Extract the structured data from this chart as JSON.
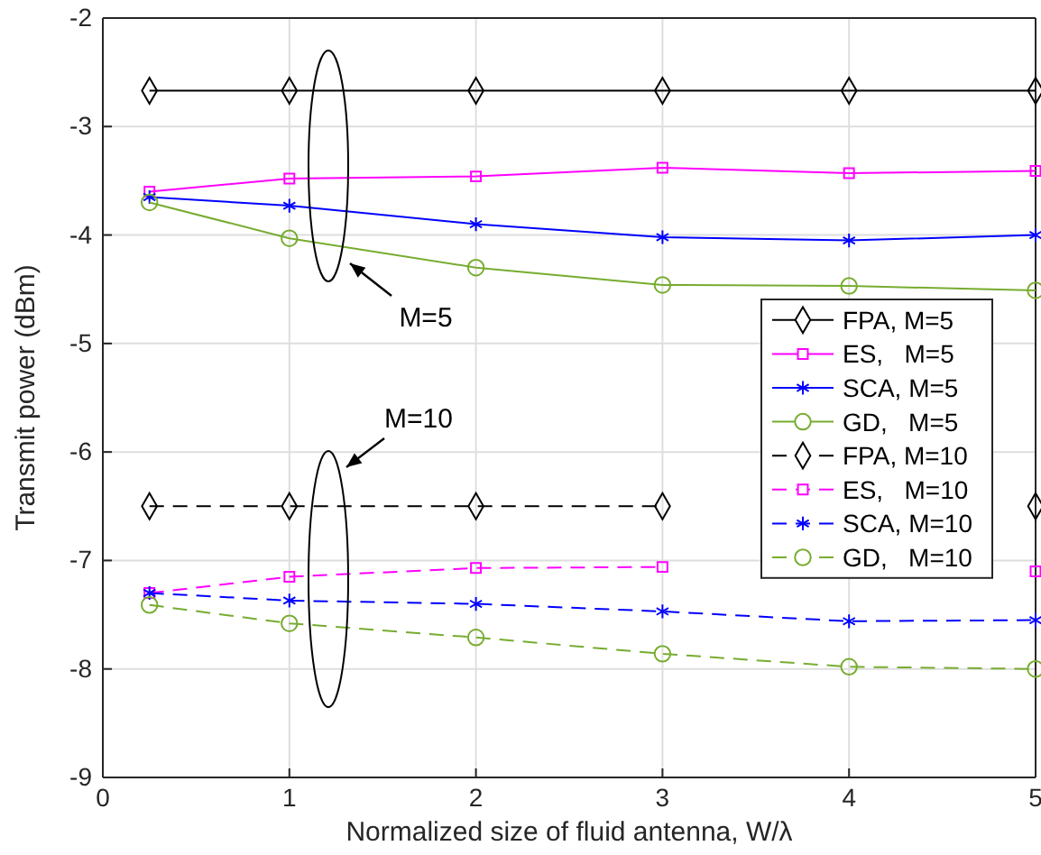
{
  "chart_data": {
    "type": "line",
    "xlabel": "Normalized size of fluid antenna, W/λ",
    "ylabel": "Transmit power (dBm)",
    "x": [
      0.25,
      1,
      2,
      3,
      4,
      5
    ],
    "xlim": [
      0,
      5
    ],
    "xticks": [
      0,
      1,
      2,
      3,
      4,
      5
    ],
    "ylim": [
      -9,
      -2
    ],
    "yticks": [
      -9,
      -8,
      -7,
      -6,
      -5,
      -4,
      -3,
      -2
    ],
    "grid": true,
    "legend": "right",
    "annotations": [
      "M=5",
      "M=10"
    ],
    "series": [
      {
        "name": "FPA, M=5",
        "color": "#000000",
        "marker": "diamond",
        "line_style": "solid",
        "values": [
          -2.67,
          -2.67,
          -2.67,
          -2.67,
          -2.67,
          -2.67
        ]
      },
      {
        "name": "ES,   M=5",
        "color": "#ff00ff",
        "marker": "square",
        "line_style": "solid",
        "values": [
          -3.6,
          -3.48,
          -3.46,
          -3.38,
          -3.43,
          -3.41
        ]
      },
      {
        "name": "SCA, M=5",
        "color": "#0000ff",
        "marker": "cross",
        "line_style": "solid",
        "values": [
          -3.65,
          -3.73,
          -3.9,
          -4.02,
          -4.05,
          -4.0
        ]
      },
      {
        "name": "GD,   M=5",
        "color": "#77ac30",
        "marker": "circle",
        "line_style": "solid",
        "values": [
          -3.7,
          -4.03,
          -4.3,
          -4.46,
          -4.47,
          -4.51
        ]
      },
      {
        "name": "FPA, M=10",
        "color": "#000000",
        "marker": "diamond",
        "line_style": "dashed",
        "values": [
          -6.5,
          -6.5,
          -6.5,
          -6.5,
          null,
          -6.5
        ]
      },
      {
        "name": "ES,   M=10",
        "color": "#ff00ff",
        "marker": "square",
        "line_style": "dashed",
        "values": [
          -7.3,
          -7.15,
          -7.07,
          -7.06,
          null,
          -7.1
        ]
      },
      {
        "name": "SCA, M=10",
        "color": "#0000ff",
        "marker": "cross",
        "line_style": "dashed",
        "values": [
          -7.3,
          -7.37,
          -7.4,
          -7.47,
          -7.56,
          -7.55
        ]
      },
      {
        "name": "GD,   M=10",
        "color": "#77ac30",
        "marker": "circle",
        "line_style": "dashed",
        "values": [
          -7.41,
          -7.58,
          -7.71,
          -7.86,
          -7.98,
          -8.0
        ]
      }
    ]
  }
}
